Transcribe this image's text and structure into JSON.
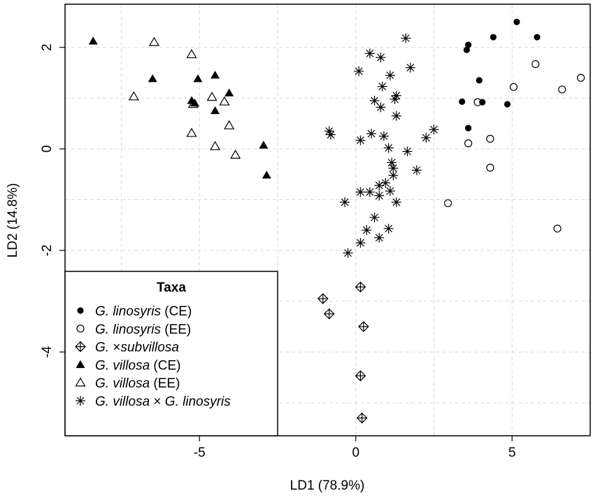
{
  "chart_data": {
    "type": "scatter",
    "xlabel": "LD1 (78.9%)",
    "ylabel": "LD2 (14.8%)",
    "xlim": [
      -9.3,
      7.5
    ],
    "ylim": [
      -5.65,
      2.85
    ],
    "x_ticks": [
      -5,
      0,
      5
    ],
    "y_ticks": [
      -4,
      -2,
      0,
      2
    ],
    "grid": true,
    "legend_position": "bottom-left",
    "legend_title": "Taxa",
    "series": [
      {
        "name_parts": [
          {
            "t": "G. linosyris",
            "i": true
          },
          {
            "t": " (CE)",
            "i": false
          }
        ],
        "marker": "filled-circle",
        "points": [
          [
            5.15,
            2.5
          ],
          [
            4.4,
            2.2
          ],
          [
            5.8,
            2.2
          ],
          [
            3.6,
            2.05
          ],
          [
            3.55,
            1.95
          ],
          [
            3.95,
            1.35
          ],
          [
            3.4,
            0.93
          ],
          [
            4.05,
            0.92
          ],
          [
            4.85,
            0.88
          ],
          [
            3.6,
            0.41
          ]
        ]
      },
      {
        "name_parts": [
          {
            "t": "G. linosyris",
            "i": true
          },
          {
            "t": " (EE)",
            "i": false
          }
        ],
        "marker": "open-circle",
        "points": [
          [
            5.75,
            1.67
          ],
          [
            7.2,
            1.4
          ],
          [
            5.05,
            1.22
          ],
          [
            6.6,
            1.17
          ],
          [
            3.9,
            0.92
          ],
          [
            4.3,
            0.2
          ],
          [
            3.6,
            0.11
          ],
          [
            4.3,
            -0.37
          ],
          [
            2.95,
            -1.07
          ],
          [
            6.45,
            -1.57
          ]
        ]
      },
      {
        "name_parts": [
          {
            "t": "G. ",
            "i": true
          },
          {
            "t": "×",
            "i": false
          },
          {
            "t": "subvillosa",
            "i": true
          }
        ],
        "marker": "diamond-plus",
        "points": [
          [
            -1.05,
            -2.95
          ],
          [
            -0.85,
            -3.25
          ],
          [
            0.15,
            -2.72
          ],
          [
            0.25,
            -3.5
          ],
          [
            0.15,
            -4.47
          ],
          [
            0.2,
            -5.3
          ]
        ]
      },
      {
        "name_parts": [
          {
            "t": "G. villosa",
            "i": true
          },
          {
            "t": " (CE)",
            "i": false
          }
        ],
        "marker": "filled-triangle",
        "points": [
          [
            -8.4,
            2.12
          ],
          [
            -6.5,
            1.38
          ],
          [
            -5.05,
            1.38
          ],
          [
            -4.5,
            1.45
          ],
          [
            -4.05,
            1.1
          ],
          [
            -5.25,
            0.95
          ],
          [
            -5.15,
            0.9
          ],
          [
            -4.5,
            0.75
          ],
          [
            -2.95,
            0.07
          ],
          [
            -2.85,
            -0.52
          ]
        ]
      },
      {
        "name_parts": [
          {
            "t": "G. villosa",
            "i": true
          },
          {
            "t": " (EE)",
            "i": false
          }
        ],
        "marker": "open-triangle",
        "points": [
          [
            -6.45,
            2.1
          ],
          [
            -5.25,
            1.86
          ],
          [
            -7.1,
            1.03
          ],
          [
            -4.6,
            1.02
          ],
          [
            -4.2,
            0.93
          ],
          [
            -5.2,
            0.88
          ],
          [
            -4.05,
            0.46
          ],
          [
            -5.25,
            0.31
          ],
          [
            -4.5,
            0.05
          ],
          [
            -3.85,
            -0.12
          ]
        ]
      },
      {
        "name_parts": [
          {
            "t": "G. villosa",
            "i": true
          },
          {
            "t": " × ",
            "i": false
          },
          {
            "t": "G. linosyris",
            "i": true
          }
        ],
        "marker": "asterisk",
        "points": [
          [
            1.6,
            2.18
          ],
          [
            0.45,
            1.88
          ],
          [
            0.8,
            1.8
          ],
          [
            1.75,
            1.6
          ],
          [
            0.1,
            1.53
          ],
          [
            1.1,
            1.45
          ],
          [
            0.85,
            1.23
          ],
          [
            1.3,
            1.05
          ],
          [
            1.25,
            0.98
          ],
          [
            0.6,
            0.95
          ],
          [
            0.8,
            0.82
          ],
          [
            1.3,
            0.65
          ],
          [
            2.5,
            0.38
          ],
          [
            -0.85,
            0.35
          ],
          [
            -0.8,
            0.28
          ],
          [
            0.5,
            0.3
          ],
          [
            2.25,
            0.22
          ],
          [
            0.9,
            0.25
          ],
          [
            0.15,
            0.17
          ],
          [
            1.05,
            0.02
          ],
          [
            1.65,
            -0.05
          ],
          [
            1.15,
            -0.27
          ],
          [
            1.2,
            -0.38
          ],
          [
            1.95,
            -0.42
          ],
          [
            1.2,
            -0.52
          ],
          [
            0.95,
            -0.67
          ],
          [
            0.75,
            -0.72
          ],
          [
            0.45,
            -0.85
          ],
          [
            0.15,
            -0.85
          ],
          [
            1.1,
            -0.83
          ],
          [
            0.75,
            -0.92
          ],
          [
            -0.35,
            -1.05
          ],
          [
            1.3,
            -1.05
          ],
          [
            0.6,
            -1.35
          ],
          [
            1.05,
            -1.57
          ],
          [
            0.35,
            -1.6
          ],
          [
            0.75,
            -1.75
          ],
          [
            0.15,
            -1.85
          ],
          [
            -0.25,
            -2.05
          ]
        ]
      }
    ]
  }
}
